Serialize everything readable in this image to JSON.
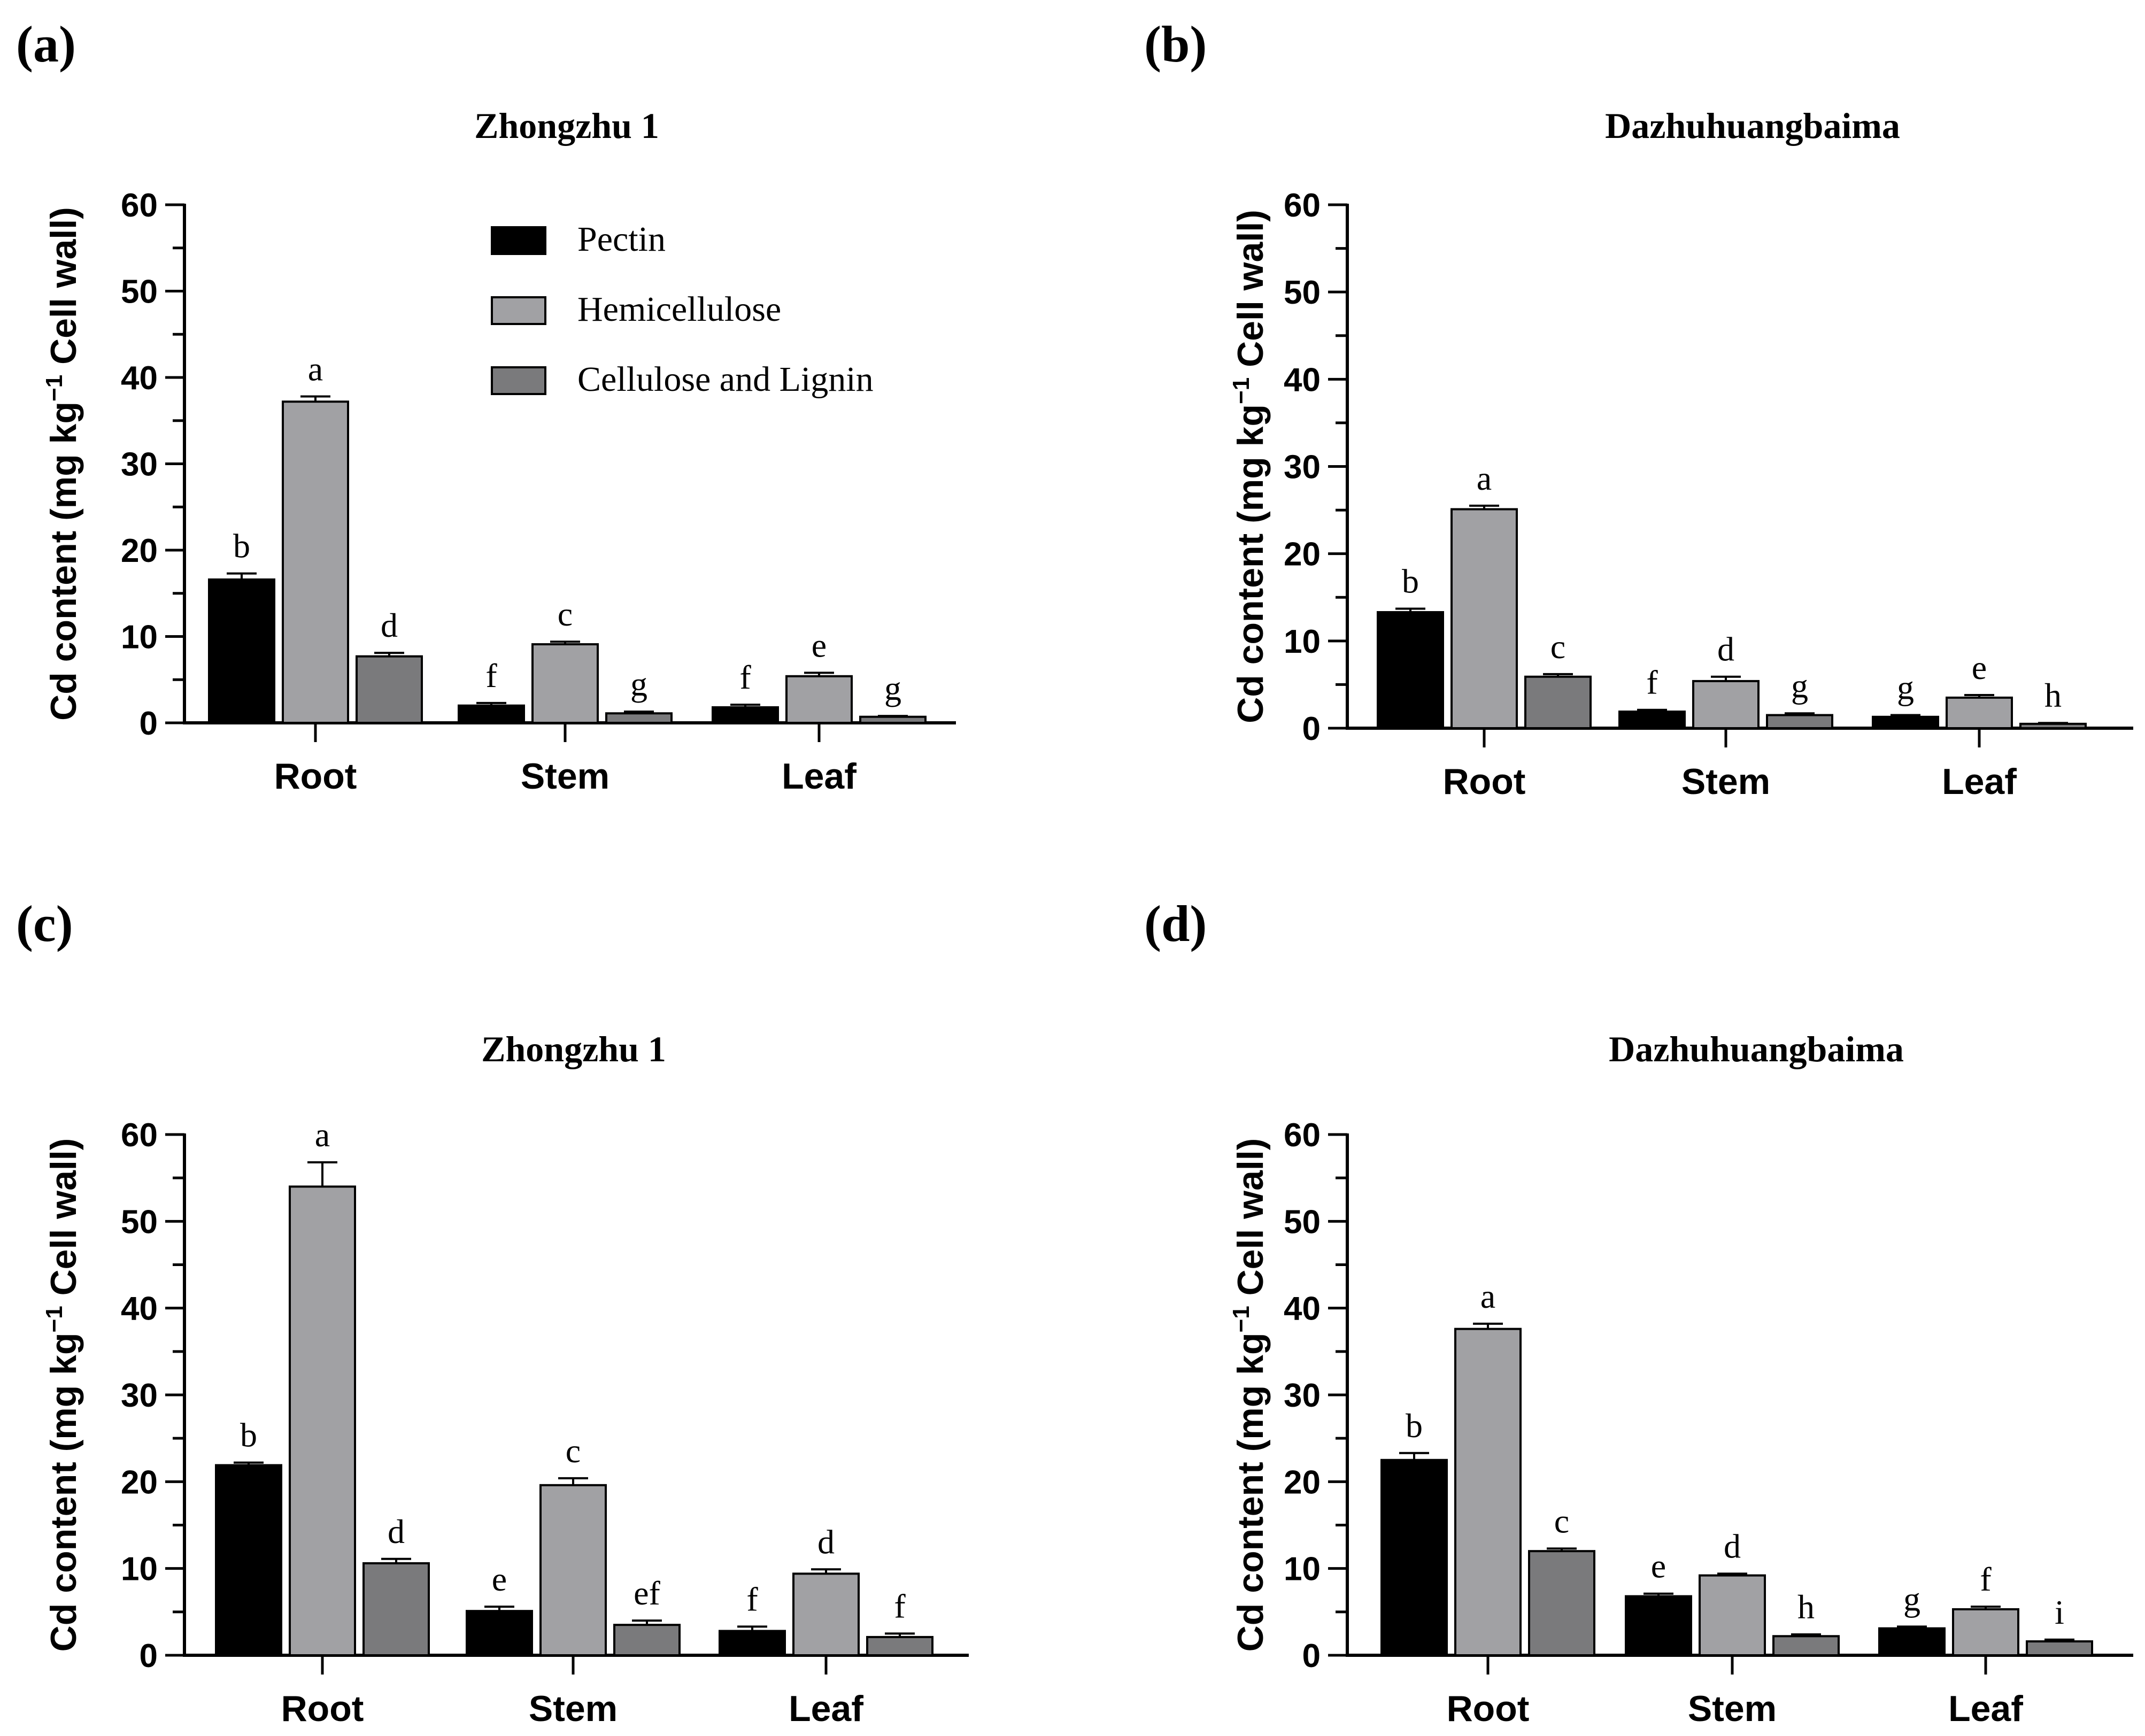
{
  "series_colors": {
    "Pectin": "#000000",
    "Hemicellulose": "#a1a1a4",
    "Cellulose and Lignin": "#7a7a7c"
  },
  "chart_data": [
    {
      "type": "bar",
      "panel_label": "(a)",
      "title": "Zhongzhu 1",
      "ylabel_main": "Cd content (mg  kg",
      "ylabel_sup": "−1",
      "ylabel_tail": " Cell wall)",
      "ylim": [
        0,
        60
      ],
      "yticks": [
        "0",
        "10",
        "20",
        "30",
        "40",
        "50",
        "60"
      ],
      "categories": [
        "Root",
        "Stem",
        "Leaf"
      ],
      "legend": [
        "Pectin",
        "Hemicellulose",
        "Cellulose and Lignin"
      ],
      "series": [
        {
          "name": "Pectin",
          "values": [
            16.6,
            2.0,
            1.8
          ],
          "errors": [
            0.7,
            0.3,
            0.3
          ],
          "letters": [
            "b",
            "f",
            "f"
          ]
        },
        {
          "name": "Hemicellulose",
          "values": [
            37.2,
            9.1,
            5.4
          ],
          "errors": [
            0.6,
            0.3,
            0.4
          ],
          "letters": [
            "a",
            "c",
            "e"
          ]
        },
        {
          "name": "Cellulose and Lignin",
          "values": [
            7.7,
            1.1,
            0.7
          ],
          "errors": [
            0.4,
            0.2,
            0.1
          ],
          "letters": [
            "d",
            "g",
            "g"
          ]
        }
      ]
    },
    {
      "type": "bar",
      "panel_label": "(b)",
      "title": "Dazhuhuangbaima",
      "ylabel_main": "Cd content (mg  kg",
      "ylabel_sup": "−1",
      "ylabel_tail": " Cell wall)",
      "ylim": [
        0,
        60
      ],
      "yticks": [
        "0",
        "10",
        "20",
        "30",
        "40",
        "50",
        "60"
      ],
      "categories": [
        "Root",
        "Stem",
        "Leaf"
      ],
      "series": [
        {
          "name": "Pectin",
          "values": [
            13.3,
            1.9,
            1.3
          ],
          "errors": [
            0.4,
            0.2,
            0.2
          ],
          "letters": [
            "b",
            "f",
            "g"
          ]
        },
        {
          "name": "Hemicellulose",
          "values": [
            25.1,
            5.4,
            3.5
          ],
          "errors": [
            0.4,
            0.5,
            0.3
          ],
          "letters": [
            "a",
            "d",
            "e"
          ]
        },
        {
          "name": "Cellulose and Lignin",
          "values": [
            5.9,
            1.5,
            0.5
          ],
          "errors": [
            0.3,
            0.2,
            0.1
          ],
          "letters": [
            "c",
            "g",
            "h"
          ]
        }
      ]
    },
    {
      "type": "bar",
      "panel_label": "(c)",
      "title": "Zhongzhu 1",
      "ylabel_main": "Cd content (mg  kg",
      "ylabel_sup": "−1",
      "ylabel_tail": " Cell wall)",
      "ylim": [
        0,
        60
      ],
      "yticks": [
        "0",
        "10",
        "20",
        "30",
        "40",
        "50",
        "60"
      ],
      "categories": [
        "Root",
        "Stem",
        "Leaf"
      ],
      "series": [
        {
          "name": "Pectin",
          "values": [
            21.9,
            5.1,
            2.8
          ],
          "errors": [
            0.3,
            0.5,
            0.5
          ],
          "letters": [
            "b",
            "e",
            "f"
          ]
        },
        {
          "name": "Hemicellulose",
          "values": [
            54.0,
            19.6,
            9.4
          ],
          "errors": [
            2.8,
            0.8,
            0.5
          ],
          "letters": [
            "a",
            "c",
            "d"
          ]
        },
        {
          "name": "Cellulose and Lignin",
          "values": [
            10.6,
            3.5,
            2.1
          ],
          "errors": [
            0.5,
            0.5,
            0.4
          ],
          "letters": [
            "d",
            "ef",
            "f"
          ]
        }
      ]
    },
    {
      "type": "bar",
      "panel_label": "(d)",
      "title": "Dazhuhuangbaima",
      "ylabel_main": "Cd content (mg  kg",
      "ylabel_sup": "−1",
      "ylabel_tail": " Cell wall)",
      "ylim": [
        0,
        60
      ],
      "yticks": [
        "0",
        "10",
        "20",
        "30",
        "40",
        "50",
        "60"
      ],
      "categories": [
        "Root",
        "Stem",
        "Leaf"
      ],
      "series": [
        {
          "name": "Pectin",
          "values": [
            22.5,
            6.8,
            3.1
          ],
          "errors": [
            0.8,
            0.3,
            0.2
          ],
          "letters": [
            "b",
            "e",
            "g"
          ]
        },
        {
          "name": "Hemicellulose",
          "values": [
            37.6,
            9.2,
            5.3
          ],
          "errors": [
            0.6,
            0.2,
            0.3
          ],
          "letters": [
            "a",
            "d",
            "f"
          ]
        },
        {
          "name": "Cellulose and Lignin",
          "values": [
            12.0,
            2.2,
            1.6
          ],
          "errors": [
            0.3,
            0.2,
            0.2
          ],
          "letters": [
            "c",
            "h",
            "i"
          ]
        }
      ]
    }
  ]
}
